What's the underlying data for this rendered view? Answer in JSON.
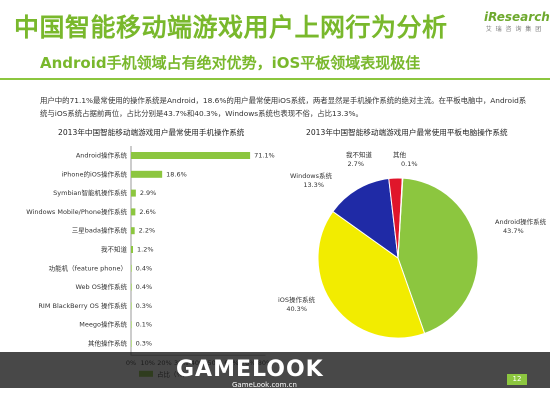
{
  "header": {
    "title": "中国智能移动端游戏用户上网行为分析",
    "subtitle": "Android手机领域占有绝对优势，iOS平板领域表现极佳",
    "logo_brand": "iResearch",
    "logo_cn": "艾 瑞 咨 询 集 团"
  },
  "paragraph": "用户中的71.1%最常使用的操作系统是Android，18.6%的用户最常使用iOS系统，两者显然是手机操作系统的绝对主流。在平板电脑中，Android系统与iOS系统占据前两位，占比分别是43.7%和40.3%，Windows系统也表现不俗，占比13.3%。",
  "chart_data": [
    {
      "type": "bar",
      "title": "2013年中国智能移动端游戏用户最常使用手机操作系统",
      "categories": [
        "Android操作系统",
        "iPhone的iOS操作系统",
        "Symbian智能机操作系统",
        "Windows Mobile/Phone操作系统",
        "三星bada操作系统",
        "我不知道",
        "功能机（feature phone）",
        "Web OS操作系统",
        "RIM BlackBerry OS 操作系统",
        "Meego操作系统",
        "其他操作系统"
      ],
      "values": [
        71.1,
        18.6,
        2.9,
        2.6,
        2.2,
        1.2,
        0.4,
        0.4,
        0.3,
        0.1,
        0.3
      ],
      "value_labels": [
        "71.1%",
        "18.6%",
        "2.9%",
        "2.6%",
        "2.2%",
        "1.2%",
        "0.4%",
        "0.4%",
        "0.3%",
        "0.1%",
        "0.3%"
      ],
      "xticks": [
        "0%",
        "10%",
        "20%",
        "30%",
        "40%",
        "50%",
        "60%",
        "70%",
        "80%"
      ],
      "xlim": [
        0,
        80
      ],
      "legend": "占比（%）",
      "color": "#8cc63f"
    },
    {
      "type": "pie",
      "title": "2013年中国智能移动端游戏用户最常使用平板电脑操作系统",
      "slices": [
        {
          "label": "Android操作系统",
          "value": 43.7,
          "value_label": "43.7%",
          "color": "#8cc63f"
        },
        {
          "label": "iOS操作系统",
          "value": 40.3,
          "value_label": "40.3%",
          "color": "#f2ec00"
        },
        {
          "label": "Windows系统",
          "value": 13.3,
          "value_label": "13.3%",
          "color": "#1f2aa6"
        },
        {
          "label": "我不知道",
          "value": 2.7,
          "value_label": "2.7%",
          "color": "#e0162b"
        },
        {
          "label": "其他",
          "value": 0.1,
          "value_label": "0.1%",
          "color": "#6a6a6a"
        }
      ]
    }
  ],
  "watermark": {
    "text": "GAMELOOK",
    "url": "GameLook.com.cn"
  },
  "footer": {
    "note": "注释：1.N=...（partially obscured source note）",
    "page": "12"
  }
}
